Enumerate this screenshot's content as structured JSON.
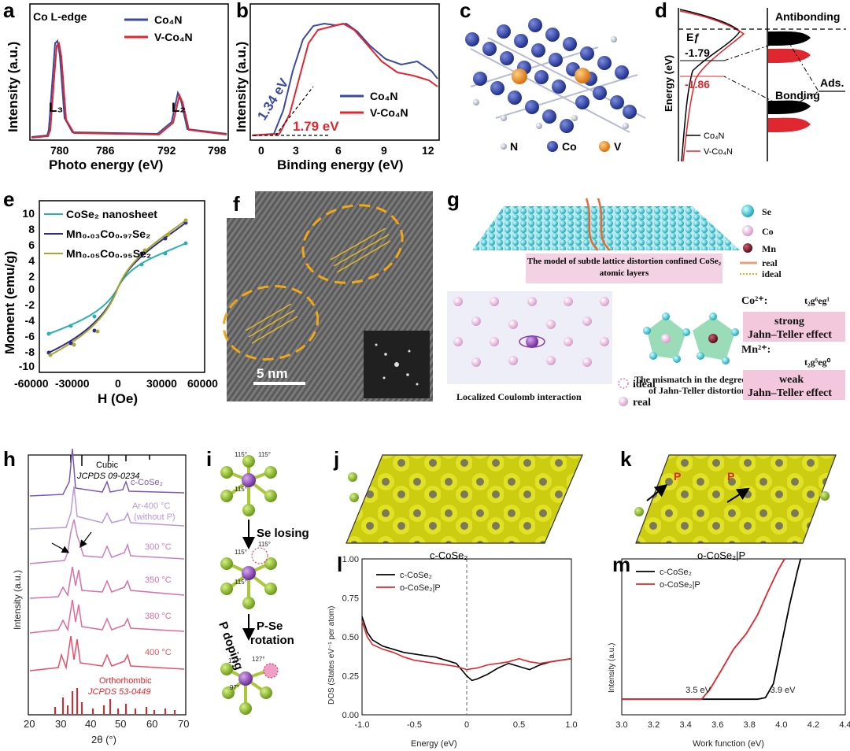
{
  "panel_labels": {
    "a": "a",
    "b": "b",
    "c": "c",
    "d": "d",
    "e": "e",
    "f": "f",
    "g": "g",
    "h": "h",
    "i": "i",
    "j": "j",
    "k": "k",
    "l": "l",
    "m": "m"
  },
  "colors": {
    "blue": "#3b4aa0",
    "red": "#e0262e",
    "cyan": "#2ab0b0",
    "navy": "#2c2c8c",
    "olive": "#a8a830",
    "purple": "#8a55b8",
    "pink": "#e55a8a",
    "yellow": "#d8d818",
    "atom_blue": "#2a3f9a",
    "atom_orange": "#e88a20"
  },
  "a": {
    "title": "Co L-edge",
    "legend": [
      "Co₄N",
      "V-Co₄N"
    ],
    "xlabel": "Photo energy (eV)",
    "ylabel": "Intensity (a.u.)",
    "peaks": [
      "L₃",
      "L₂"
    ],
    "xticks": [
      "780",
      "786",
      "792",
      "798"
    ]
  },
  "b": {
    "xlabel": "Binding energy (eV)",
    "ylabel": "Intensity (a.u.)",
    "legend": [
      "Co₄N",
      "V-Co₄N"
    ],
    "gap_blue": "1.34 eV",
    "gap_red": "1.79 eV",
    "xticks": [
      "0",
      "3",
      "6",
      "9",
      "12"
    ]
  },
  "c": {
    "legend": [
      "N",
      "Co",
      "V"
    ]
  },
  "d": {
    "ylabel": "Energy (eV)",
    "ef": "Eƒ",
    "v1": "-1.79",
    "v2": "-1.86",
    "antibonding": "Antibonding",
    "bonding": "Bonding",
    "ads": "Ads.",
    "legend": [
      "Co₄N",
      "V-Co₄N"
    ]
  },
  "e": {
    "xlabel": "H (Oe)",
    "ylabel": "Moment (emu/g)",
    "legend": [
      "CoSe₂ nanosheet",
      "Mn₀.₀₃Co₀.₉₇Se₂",
      "Mn₀.₀₅Co₀.₉₅Se₂"
    ],
    "xticks": [
      "-60000",
      "-30000",
      "0",
      "30000",
      "60000"
    ],
    "yticks": [
      "10",
      "8",
      "6",
      "4",
      "2",
      "0",
      "-2",
      "-4",
      "-6",
      "-8",
      "-10"
    ]
  },
  "f": {
    "scale": "5 nm"
  },
  "g": {
    "legend": [
      "Se",
      "Co",
      "Mn",
      "real",
      "ideal"
    ],
    "caption_top": "The model of subtle lattice distortion confined CoSe₂ atomic layers",
    "caption_left": "Localized Coulomb interaction",
    "caption_right_1": "The mismatch in the degree",
    "caption_right_2": "of Jahn-Teller distortion",
    "ideal": "ideal",
    "real": "real",
    "co_label": "Co²⁺:",
    "co_config": "t₂g⁶eg¹",
    "strong_1": "strong",
    "strong_2": "Jahn–Teller effect",
    "mn_label": "Mn²⁺:",
    "mn_config": "t₂g⁵eg⁰",
    "weak_1": "weak",
    "weak_2": "Jahn–Teller effect"
  },
  "h": {
    "ref_top_1": "Cubic",
    "ref_top_2": "JCPDS 09-0234",
    "traces": [
      "c-CoSe₂",
      "Ar-400 °C",
      "(without P)",
      "300 °C",
      "350 °C",
      "380 °C",
      "400 °C"
    ],
    "ref_bottom_1": "Orthorhombic",
    "ref_bottom_2": "JCPDS 53-0449",
    "xlabel": "2θ (°)",
    "ylabel": "Intensity (a.u.)",
    "xticks": [
      "20",
      "30",
      "40",
      "50",
      "60",
      "70"
    ]
  },
  "i": {
    "step1": "Se losing",
    "step2a": "P-Se",
    "step2b": "rotation",
    "side": "P doping",
    "angles": [
      "115°",
      "115°",
      "115°",
      "115°",
      "115°",
      "115°",
      "127°",
      "127°",
      "97°"
    ]
  },
  "j": {
    "label": "c-CoSe₂"
  },
  "k": {
    "label": "o-CoSe₂|P",
    "p": "P"
  },
  "chart_data": [
    {
      "panel": "l",
      "type": "line",
      "xlabel": "Energy (eV)",
      "ylabel": "DOS (States eV⁻¹ per atom)",
      "xlim": [
        -1.0,
        1.0
      ],
      "ylim": [
        0.0,
        1.0
      ],
      "xticks": [
        "-1.0",
        "-0.5",
        "0",
        "0.5",
        "1.0"
      ],
      "yticks": [
        "0.00",
        "0.25",
        "0.50",
        "0.75",
        "1.00"
      ],
      "series": [
        {
          "name": "c-CoSe₂",
          "x": [
            -1.0,
            -0.95,
            -0.9,
            -0.8,
            -0.7,
            -0.6,
            -0.5,
            -0.4,
            -0.3,
            -0.2,
            -0.1,
            0.0,
            0.05,
            0.1,
            0.2,
            0.3,
            0.4,
            0.5,
            0.6,
            0.7,
            0.8,
            0.9,
            1.0
          ],
          "y": [
            0.63,
            0.53,
            0.48,
            0.44,
            0.42,
            0.4,
            0.39,
            0.38,
            0.37,
            0.35,
            0.33,
            0.25,
            0.22,
            0.23,
            0.26,
            0.3,
            0.33,
            0.31,
            0.29,
            0.32,
            0.34,
            0.35,
            0.36
          ]
        },
        {
          "name": "o-CoSe₂|P",
          "x": [
            -1.0,
            -0.95,
            -0.9,
            -0.8,
            -0.7,
            -0.6,
            -0.5,
            -0.4,
            -0.3,
            -0.2,
            -0.1,
            0.0,
            0.1,
            0.2,
            0.3,
            0.4,
            0.5,
            0.6,
            0.7,
            0.8,
            0.9,
            1.0
          ],
          "y": [
            0.6,
            0.5,
            0.45,
            0.42,
            0.4,
            0.37,
            0.35,
            0.34,
            0.33,
            0.32,
            0.31,
            0.29,
            0.3,
            0.32,
            0.33,
            0.34,
            0.36,
            0.34,
            0.33,
            0.34,
            0.35,
            0.36
          ]
        }
      ]
    },
    {
      "panel": "m",
      "type": "line",
      "xlabel": "Work function (eV)",
      "ylabel": "Intensity (a.u.)",
      "xlim": [
        3.0,
        4.4
      ],
      "xticks": [
        "3.0",
        "3.2",
        "3.4",
        "3.6",
        "3.8",
        "4.0",
        "4.2",
        "4.4"
      ],
      "annotations": [
        "3.5 eV",
        "3.9 eV"
      ],
      "series": [
        {
          "name": "c-CoSe₂",
          "x": [
            3.0,
            3.85,
            3.9,
            3.95,
            4.0,
            4.05,
            4.1,
            4.12
          ],
          "y": [
            0.1,
            0.1,
            0.11,
            0.2,
            0.45,
            0.7,
            0.92,
            1.0
          ]
        },
        {
          "name": "o-CoSe₂|P",
          "x": [
            3.0,
            3.5,
            3.55,
            3.62,
            3.7,
            3.78,
            3.85,
            3.92,
            3.98,
            4.02
          ],
          "y": [
            0.1,
            0.1,
            0.16,
            0.28,
            0.42,
            0.52,
            0.64,
            0.8,
            0.93,
            1.0
          ]
        }
      ]
    }
  ]
}
